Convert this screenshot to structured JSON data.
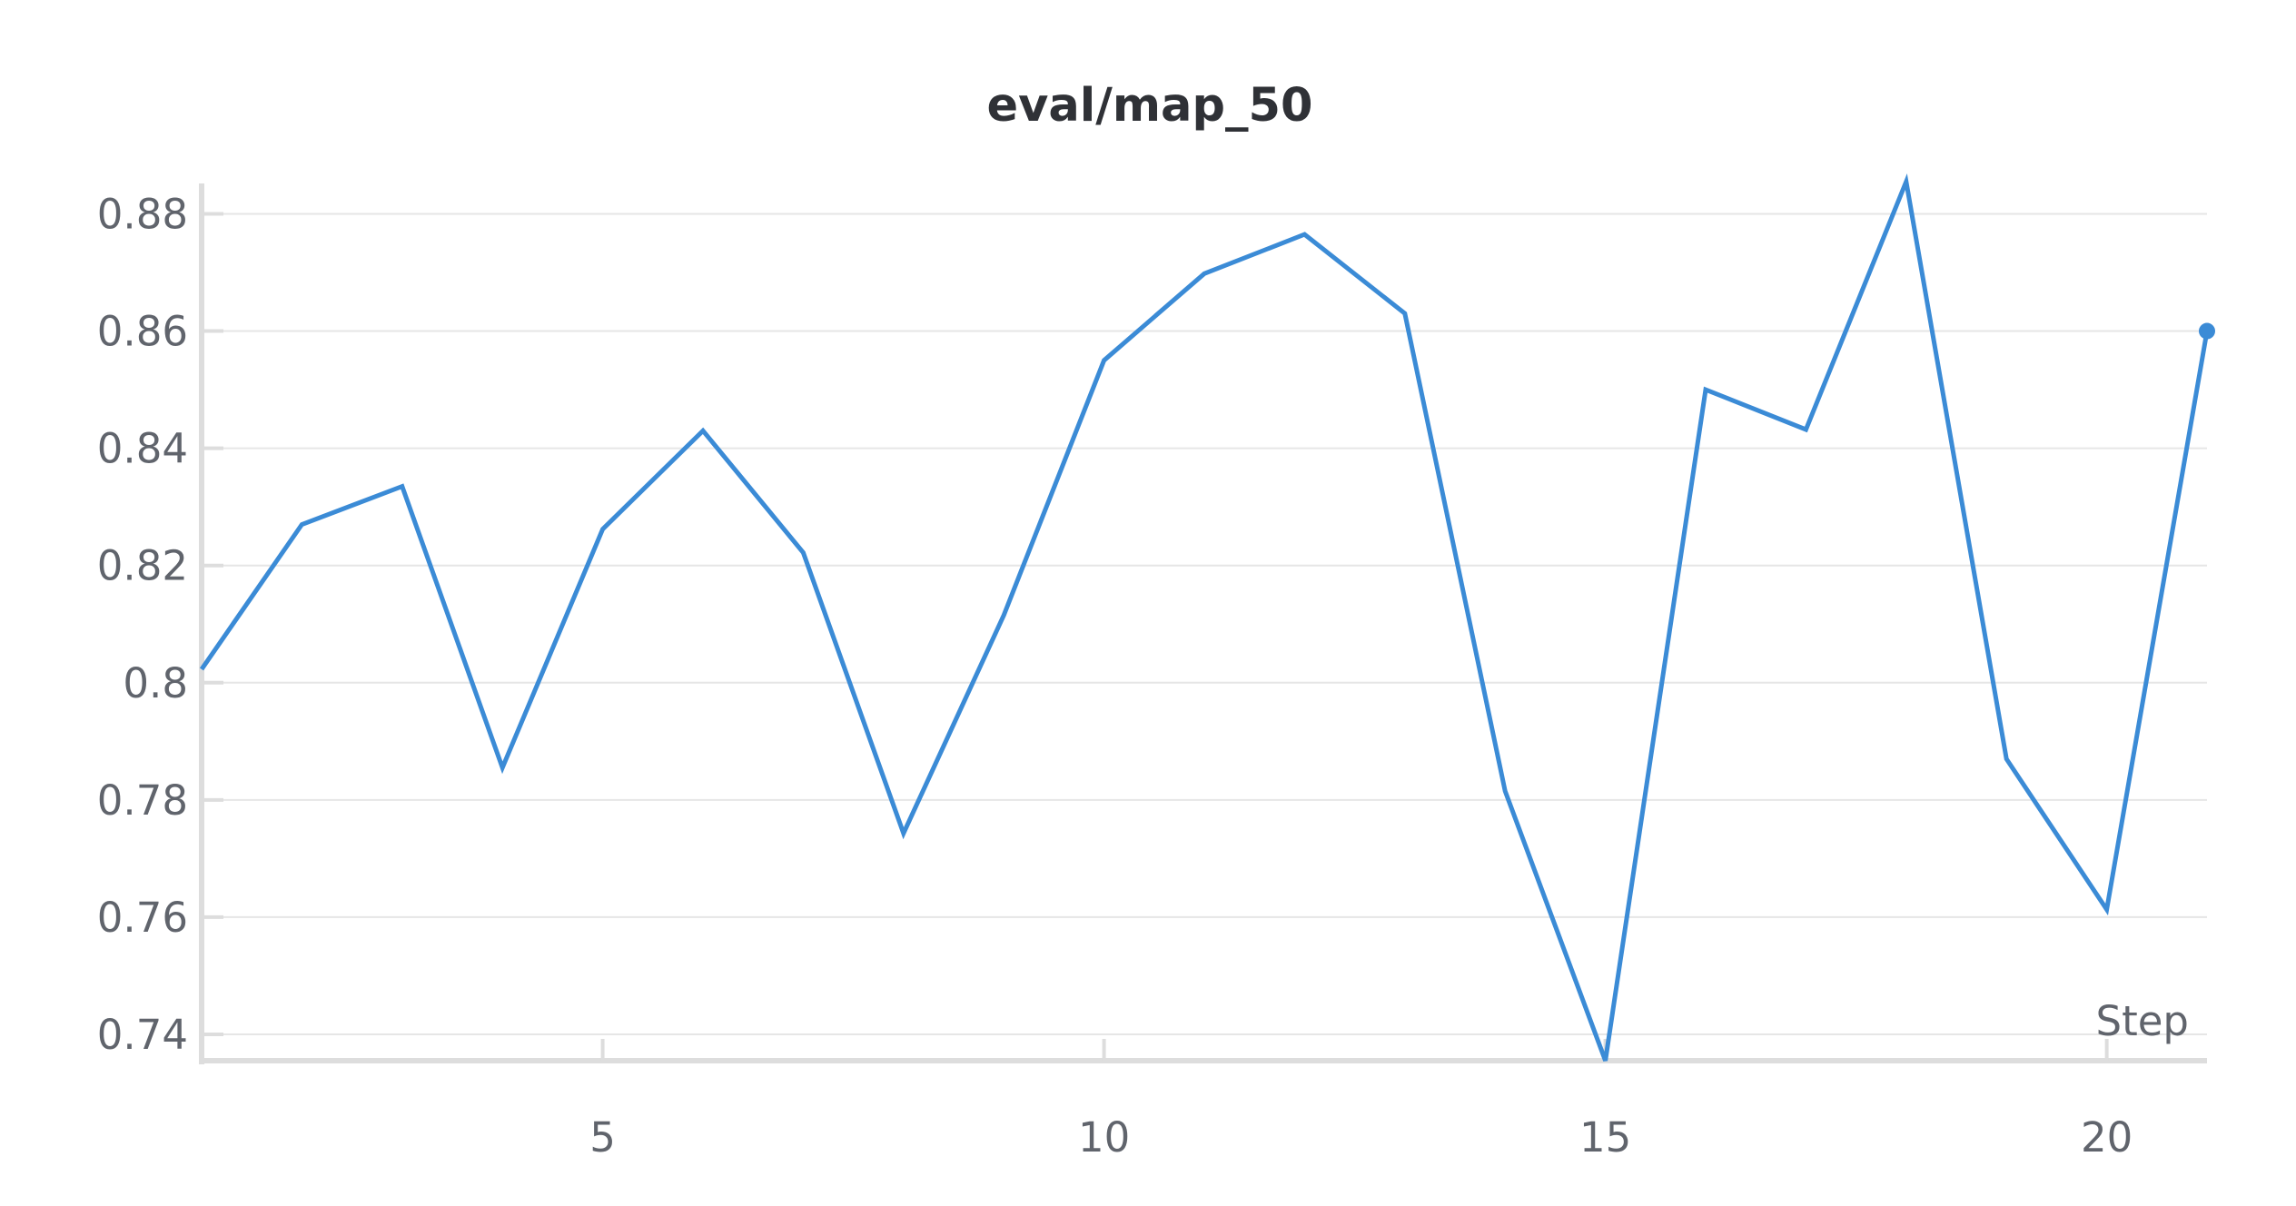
{
  "chart_data": {
    "type": "line",
    "title": "eval/map_50",
    "xlabel": "Step",
    "ylabel": "",
    "xlim": [
      1,
      21
    ],
    "ylim": [
      0.7355,
      0.8855
    ],
    "x_ticks": [
      5,
      10,
      15,
      20
    ],
    "y_ticks": [
      0.74,
      0.76,
      0.78,
      0.8,
      0.82,
      0.84,
      0.86,
      0.88
    ],
    "y_tick_labels": [
      "0.74",
      "0.76",
      "0.78",
      "0.8",
      "0.82",
      "0.84",
      "0.86",
      "0.88"
    ],
    "grid": true,
    "color": "#3b8bd6",
    "series": [
      {
        "x": [
          1,
          2,
          3,
          4,
          5,
          6,
          7,
          8,
          9,
          10,
          11,
          12,
          13,
          14,
          15,
          16,
          17,
          18,
          19,
          20,
          21
        ],
        "values": [
          0.8023,
          0.827,
          0.8335,
          0.7855,
          0.8262,
          0.843,
          0.8222,
          0.7743,
          0.8115,
          0.855,
          0.8698,
          0.8765,
          0.863,
          0.7815,
          0.7355,
          0.85,
          0.8432,
          0.8855,
          0.787,
          0.7613,
          0.86
        ]
      }
    ]
  }
}
